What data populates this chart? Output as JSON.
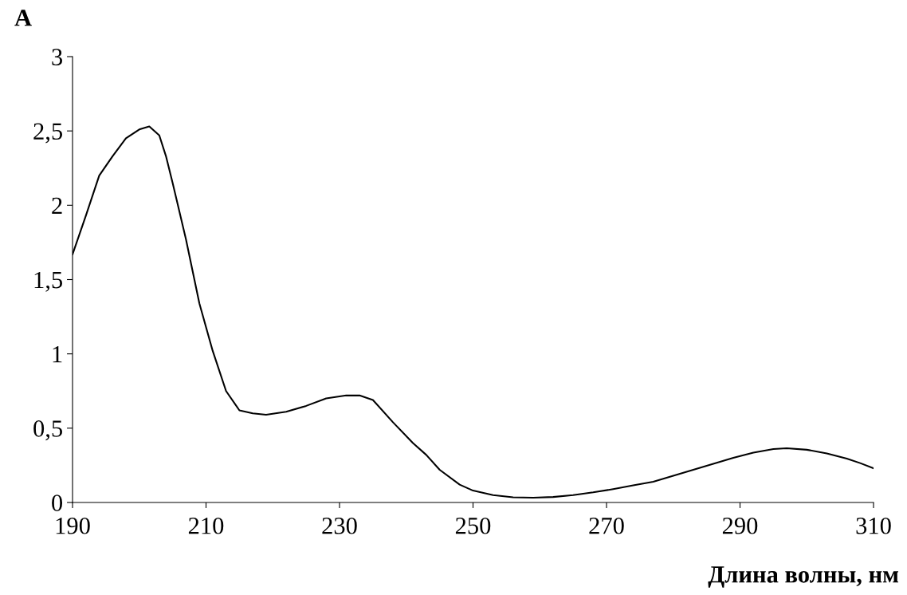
{
  "chart_data": {
    "type": "line",
    "title": "A",
    "xlabel": "Длина волны, нм",
    "x": [
      190,
      192,
      194,
      196,
      198,
      200,
      201.5,
      203,
      204,
      205,
      207,
      209,
      211,
      213,
      215,
      217,
      219,
      222,
      225,
      228,
      231,
      233,
      235,
      238,
      241,
      243,
      245,
      248,
      250,
      253,
      256,
      259,
      262,
      265,
      268,
      271,
      274,
      277,
      280,
      283,
      286,
      289,
      292,
      295,
      297,
      300,
      303,
      306,
      308,
      310
    ],
    "series": [
      {
        "color": "#000000",
        "values": [
          1.67,
          1.93,
          2.2,
          2.33,
          2.45,
          2.51,
          2.53,
          2.47,
          2.33,
          2.15,
          1.77,
          1.34,
          1.02,
          0.75,
          0.62,
          0.6,
          0.59,
          0.61,
          0.65,
          0.7,
          0.72,
          0.72,
          0.69,
          0.54,
          0.4,
          0.32,
          0.22,
          0.12,
          0.08,
          0.05,
          0.035,
          0.032,
          0.037,
          0.05,
          0.068,
          0.09,
          0.115,
          0.14,
          0.18,
          0.22,
          0.26,
          0.3,
          0.335,
          0.36,
          0.365,
          0.355,
          0.33,
          0.295,
          0.265,
          0.23
        ]
      }
    ],
    "xlim": [
      190,
      310
    ],
    "xticks": [
      190,
      210,
      230,
      250,
      270,
      290,
      310
    ],
    "ylim": [
      0,
      3
    ],
    "yticks": [
      0,
      {
        "value": 0.5,
        "label": "0,5"
      },
      1,
      {
        "value": 1.5,
        "label": "1,5"
      },
      2,
      {
        "value": 2.5,
        "label": "2,5"
      },
      3
    ],
    "grid": false,
    "legend": false,
    "marker": "none",
    "line_style": "solid"
  }
}
